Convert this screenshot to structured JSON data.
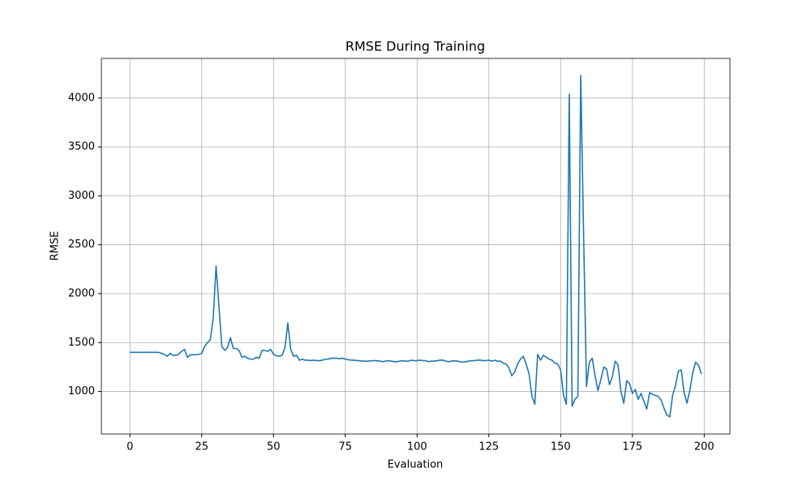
{
  "chart_data": {
    "type": "line",
    "title": "RMSE During Training",
    "x_label": "Evaluation",
    "y_label": "RMSE",
    "x": [
      0,
      1,
      2,
      3,
      4,
      5,
      6,
      7,
      8,
      9,
      10,
      11,
      12,
      13,
      14,
      15,
      16,
      17,
      18,
      19,
      20,
      21,
      22,
      23,
      24,
      25,
      26,
      27,
      28,
      29,
      30,
      31,
      32,
      33,
      34,
      35,
      36,
      37,
      38,
      39,
      40,
      41,
      42,
      43,
      44,
      45,
      46,
      47,
      48,
      49,
      50,
      51,
      52,
      53,
      54,
      55,
      56,
      57,
      58,
      59,
      60,
      61,
      62,
      63,
      64,
      65,
      66,
      67,
      68,
      69,
      70,
      71,
      72,
      73,
      74,
      75,
      76,
      77,
      78,
      79,
      80,
      81,
      82,
      83,
      84,
      85,
      86,
      87,
      88,
      89,
      90,
      91,
      92,
      93,
      94,
      95,
      96,
      97,
      98,
      99,
      100,
      101,
      102,
      103,
      104,
      105,
      106,
      107,
      108,
      109,
      110,
      111,
      112,
      113,
      114,
      115,
      116,
      117,
      118,
      119,
      120,
      121,
      122,
      123,
      124,
      125,
      126,
      127,
      128,
      129,
      130,
      131,
      132,
      133,
      134,
      135,
      136,
      137,
      138,
      139,
      140,
      141,
      142,
      143,
      144,
      145,
      146,
      147,
      148,
      149,
      150,
      151,
      152,
      153,
      154,
      155,
      156,
      157,
      158,
      159,
      160,
      161,
      162,
      163,
      164,
      165,
      166,
      167,
      168,
      169,
      170,
      171,
      172,
      173,
      174,
      175,
      176,
      177,
      178,
      179,
      180,
      181,
      182,
      183,
      184,
      185,
      186,
      187,
      188,
      189,
      190,
      191,
      192,
      193,
      194,
      195,
      196,
      197,
      198,
      199
    ],
    "series": [
      {
        "color": "#1f77b4",
        "values": [
          1400,
          1400,
          1400,
          1400,
          1400,
          1400,
          1400,
          1400,
          1400,
          1400,
          1400,
          1390,
          1380,
          1360,
          1390,
          1370,
          1370,
          1380,
          1410,
          1430,
          1350,
          1375,
          1375,
          1375,
          1380,
          1390,
          1460,
          1500,
          1530,
          1750,
          2280,
          1870,
          1460,
          1420,
          1450,
          1550,
          1440,
          1440,
          1420,
          1350,
          1360,
          1340,
          1330,
          1330,
          1350,
          1340,
          1420,
          1420,
          1410,
          1430,
          1380,
          1365,
          1360,
          1370,
          1450,
          1700,
          1430,
          1360,
          1370,
          1320,
          1330,
          1320,
          1320,
          1315,
          1320,
          1315,
          1315,
          1320,
          1330,
          1330,
          1340,
          1340,
          1340,
          1335,
          1340,
          1330,
          1325,
          1320,
          1320,
          1315,
          1315,
          1310,
          1310,
          1310,
          1315,
          1315,
          1315,
          1310,
          1305,
          1310,
          1315,
          1310,
          1305,
          1305,
          1310,
          1315,
          1310,
          1310,
          1320,
          1315,
          1315,
          1320,
          1315,
          1315,
          1305,
          1310,
          1310,
          1315,
          1320,
          1320,
          1310,
          1305,
          1310,
          1315,
          1310,
          1305,
          1300,
          1305,
          1310,
          1315,
          1315,
          1320,
          1320,
          1315,
          1315,
          1320,
          1310,
          1320,
          1310,
          1310,
          1290,
          1280,
          1240,
          1160,
          1200,
          1280,
          1330,
          1360,
          1280,
          1180,
          950,
          870,
          1380,
          1320,
          1370,
          1350,
          1330,
          1320,
          1290,
          1280,
          1220,
          960,
          870,
          4040,
          850,
          920,
          950,
          4230,
          2600,
          1050,
          1300,
          1340,
          1160,
          1010,
          1120,
          1250,
          1230,
          1070,
          1150,
          1310,
          1270,
          1000,
          880,
          1110,
          1080,
          980,
          1020,
          920,
          980,
          900,
          820,
          990,
          970,
          960,
          950,
          910,
          830,
          760,
          740,
          960,
          1060,
          1210,
          1220,
          990,
          880,
          1010,
          1190,
          1300,
          1270,
          1180
        ]
      }
    ],
    "xlim": [
      -9.95,
      208.95
    ],
    "xticks": [
      0,
      25,
      50,
      75,
      100,
      125,
      150,
      175,
      200
    ],
    "ylim": [
      565,
      4405
    ],
    "yticks": [
      1000,
      1500,
      2000,
      2500,
      3000,
      3500,
      4000
    ],
    "grid": true
  }
}
